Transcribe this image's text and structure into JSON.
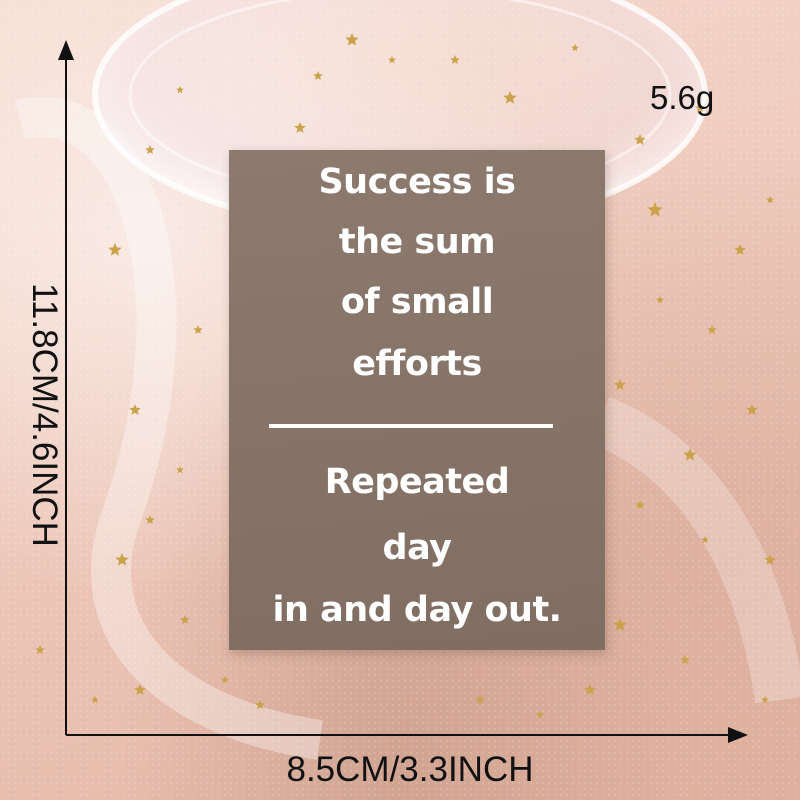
{
  "card": {
    "lines_top": [
      "Success is",
      "the sum",
      "of small",
      "efforts"
    ],
    "lines_bottom": [
      "Repeated",
      "day",
      "in and day out."
    ]
  },
  "dimensions": {
    "height": "11.8CM/4.6INCH",
    "width": "8.5CM/3.3INCH",
    "weight": "5.6g"
  },
  "colors": {
    "card": "#85746a",
    "card_text": "#ffffff",
    "label_text": "#111111",
    "star": "#c9a24a"
  },
  "icons": [
    "star-icon",
    "arrow-right-icon",
    "arrow-up-icon"
  ]
}
